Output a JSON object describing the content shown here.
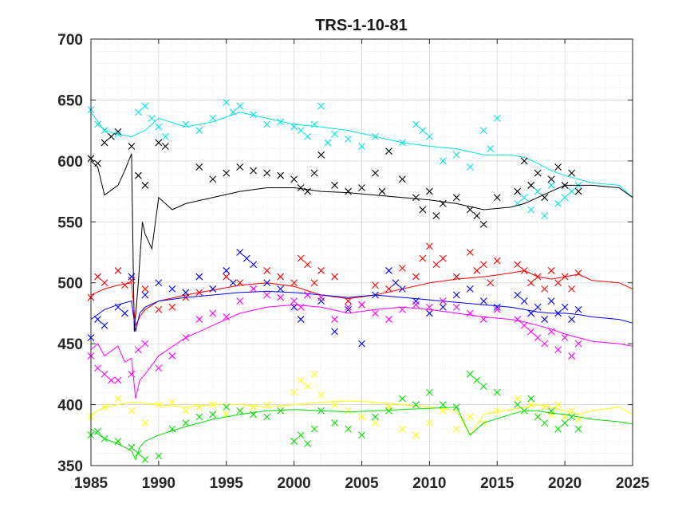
{
  "chart_data": {
    "type": "scatter",
    "title": "TRS-1-10-81",
    "xlabel": "",
    "ylabel": "",
    "xlim": [
      1985,
      2025
    ],
    "ylim": [
      350,
      700
    ],
    "xticks": [
      1985,
      1990,
      1995,
      2000,
      2005,
      2010,
      2015,
      2020,
      2025
    ],
    "yticks": [
      350,
      400,
      450,
      500,
      550,
      600,
      650,
      700
    ],
    "grid": true,
    "minor_grid": true,
    "series": [
      {
        "name": "cyan",
        "color": "#00e5e5",
        "line_x": [
          1985,
          1986,
          1987,
          1988,
          1989,
          1990,
          1992,
          1994,
          1996,
          1998,
          2000,
          2002,
          2004,
          2006,
          2008,
          2010,
          2012,
          2014,
          2016,
          2017,
          2018,
          2019,
          2020,
          2021,
          2022,
          2024,
          2025
        ],
        "line_y": [
          640,
          625,
          622,
          620,
          625,
          635,
          628,
          632,
          640,
          635,
          630,
          628,
          625,
          620,
          615,
          612,
          610,
          605,
          605,
          603,
          598,
          592,
          588,
          585,
          582,
          580,
          570
        ],
        "points_x": [
          1985,
          1985.5,
          1986,
          1987,
          1988.5,
          1989,
          1989.5,
          1990,
          1990.5,
          1992,
          1993,
          1994,
          1995,
          1995.5,
          1996,
          1997,
          1998,
          1999,
          2000,
          2000.5,
          2001,
          2001.5,
          2002,
          2002.5,
          2003,
          2004,
          2005,
          2006,
          2007,
          2008,
          2009,
          2009.5,
          2010,
          2011,
          2012,
          2013,
          2014,
          2014.5,
          2015,
          2016.5,
          2017,
          2017.5,
          2018,
          2018.5,
          2019,
          2019.5,
          2020,
          2020.5,
          2021
        ],
        "points_y": [
          642,
          630,
          625,
          622,
          640,
          645,
          635,
          628,
          620,
          630,
          625,
          635,
          648,
          640,
          645,
          638,
          630,
          632,
          628,
          625,
          620,
          630,
          645,
          615,
          622,
          618,
          612,
          620,
          608,
          615,
          630,
          625,
          620,
          600,
          605,
          595,
          625,
          610,
          635,
          565,
          570,
          560,
          575,
          555,
          580,
          565,
          570,
          575,
          580
        ]
      },
      {
        "name": "black",
        "color": "#000000",
        "line_x": [
          1985,
          1985.5,
          1986,
          1987,
          1987.5,
          1988,
          1988.2,
          1988.5,
          1988.8,
          1989,
          1989.5,
          1990,
          1991,
          1992,
          1994,
          1996,
          1998,
          2000,
          2002,
          2004,
          2006,
          2008,
          2010,
          2012,
          2014,
          2016,
          2017,
          2018,
          2019,
          2020,
          2021,
          2022,
          2024,
          2025
        ],
        "line_y": [
          600,
          595,
          572,
          580,
          592,
          606,
          460,
          500,
          550,
          540,
          528,
          570,
          560,
          565,
          570,
          575,
          578,
          578,
          575,
          574,
          572,
          570,
          568,
          565,
          560,
          562,
          565,
          570,
          575,
          580,
          580,
          580,
          578,
          570
        ],
        "points_x": [
          1985,
          1985.5,
          1986,
          1986.5,
          1987,
          1988,
          1988.5,
          1989,
          1990,
          1990.5,
          1993,
          1994,
          1995,
          1996,
          1997,
          1998,
          1999,
          2000,
          2000.5,
          2001,
          2001.5,
          2002,
          2003,
          2004,
          2005,
          2006,
          2006.5,
          2007,
          2008,
          2009,
          2009.5,
          2010,
          2010.5,
          2011,
          2012,
          2013,
          2013.5,
          2014,
          2015,
          2016.5,
          2017,
          2017.5,
          2018,
          2018.5,
          2019,
          2019.5,
          2020,
          2020.5,
          2021
        ],
        "points_y": [
          602,
          598,
          615,
          620,
          624,
          612,
          588,
          580,
          615,
          612,
          595,
          585,
          590,
          595,
          592,
          590,
          588,
          585,
          578,
          575,
          590,
          605,
          580,
          575,
          578,
          590,
          575,
          608,
          585,
          570,
          560,
          575,
          555,
          565,
          570,
          560,
          555,
          548,
          570,
          575,
          600,
          580,
          590,
          570,
          585,
          595,
          580,
          590,
          575
        ]
      },
      {
        "name": "red",
        "color": "#ff0000",
        "line_x": [
          1985,
          1986,
          1987,
          1988,
          1988.3,
          1988.6,
          1989,
          1990,
          1992,
          1994,
          1996,
          1998,
          2000,
          2002,
          2004,
          2006,
          2008,
          2010,
          2012,
          2014,
          2016,
          2017,
          2018,
          2019,
          2020,
          2021,
          2022,
          2024,
          2025
        ],
        "line_y": [
          490,
          495,
          498,
          500,
          465,
          472,
          478,
          485,
          490,
          494,
          498,
          500,
          497,
          490,
          487,
          490,
          495,
          500,
          503,
          505,
          508,
          510,
          505,
          503,
          505,
          507,
          502,
          500,
          495
        ],
        "points_x": [
          1985,
          1985.5,
          1986,
          1987,
          1987.5,
          1988,
          1989,
          1990,
          1991,
          1992,
          1993,
          1994,
          1995,
          1996,
          1997,
          1998,
          1999,
          2000,
          2000.5,
          2001,
          2001.5,
          2002,
          2003,
          2004,
          2005,
          2006,
          2007,
          2008,
          2009,
          2009.5,
          2010,
          2010.5,
          2011,
          2012,
          2013,
          2013.5,
          2014,
          2014.5,
          2015,
          2016.5,
          2017,
          2017.5,
          2018,
          2018.5,
          2019,
          2019.5,
          2020,
          2020.5,
          2021
        ],
        "points_y": [
          488,
          505,
          500,
          510,
          498,
          502,
          495,
          478,
          480,
          488,
          492,
          495,
          505,
          500,
          495,
          510,
          505,
          500,
          520,
          515,
          500,
          510,
          505,
          485,
          482,
          498,
          495,
          512,
          505,
          520,
          530,
          515,
          520,
          505,
          525,
          510,
          515,
          500,
          518,
          515,
          510,
          500,
          505,
          495,
          510,
          500,
          505,
          495,
          508
        ]
      },
      {
        "name": "blue",
        "color": "#0000ff",
        "line_x": [
          1985,
          1986,
          1987,
          1988,
          1988.3,
          1988.6,
          1989,
          1990,
          1992,
          1994,
          1996,
          1998,
          2000,
          2002,
          2004,
          2006,
          2008,
          2010,
          2012,
          2014,
          2016,
          2017,
          2018,
          2019,
          2020,
          2021,
          2022,
          2024,
          2025
        ],
        "line_y": [
          470,
          478,
          482,
          485,
          460,
          475,
          480,
          485,
          488,
          490,
          492,
          493,
          492,
          490,
          488,
          490,
          488,
          486,
          484,
          482,
          480,
          478,
          476,
          475,
          475,
          474,
          472,
          470,
          467
        ],
        "points_x": [
          1985,
          1985.5,
          1986,
          1987,
          1987.5,
          1988,
          1989,
          1990,
          1991,
          1992,
          1993,
          1994,
          1995,
          1995.5,
          1996,
          1996.5,
          1997,
          1998,
          1999,
          2000,
          2000.5,
          2001,
          2002,
          2003,
          2004,
          2005,
          2006,
          2007,
          2007.5,
          2008,
          2009,
          2010,
          2011,
          2012,
          2013,
          2014,
          2015,
          2016.5,
          2017,
          2017.5,
          2018,
          2018.5,
          2019,
          2019.5,
          2020,
          2020.5,
          2021
        ],
        "points_y": [
          455,
          470,
          465,
          480,
          475,
          505,
          490,
          500,
          495,
          492,
          505,
          495,
          510,
          500,
          525,
          520,
          515,
          500,
          495,
          480,
          470,
          490,
          485,
          460,
          478,
          450,
          490,
          510,
          500,
          495,
          485,
          475,
          480,
          490,
          495,
          485,
          480,
          490,
          485,
          475,
          480,
          470,
          485,
          475,
          480,
          470,
          478
        ]
      },
      {
        "name": "magenta",
        "color": "#ff00ff",
        "line_x": [
          1985,
          1985.5,
          1986,
          1987,
          1987.5,
          1988,
          1988.3,
          1988.6,
          1989,
          1990,
          1992,
          1994,
          1996,
          1998,
          2000,
          2002,
          2004,
          2006,
          2008,
          2010,
          2012,
          2014,
          2016,
          2017,
          2018,
          2019,
          2020,
          2021,
          2022,
          2024,
          2025
        ],
        "line_y": [
          445,
          450,
          440,
          448,
          435,
          438,
          405,
          420,
          425,
          440,
          455,
          465,
          475,
          480,
          482,
          480,
          475,
          478,
          480,
          478,
          475,
          472,
          470,
          468,
          465,
          462,
          458,
          455,
          452,
          450,
          448
        ],
        "points_x": [
          1985,
          1985.5,
          1986,
          1986.5,
          1987,
          1988,
          1988.5,
          1989,
          1990,
          1991,
          1992,
          1993,
          1994,
          1995,
          1996,
          1997,
          1998,
          1999,
          2000,
          2000.5,
          2001,
          2002,
          2003,
          2004,
          2005,
          2006,
          2007,
          2008,
          2009,
          2010,
          2011,
          2012,
          2013,
          2014,
          2015,
          2016.5,
          2017,
          2017.5,
          2018,
          2018.5,
          2019,
          2019.5,
          2020,
          2020.5,
          2021
        ],
        "points_y": [
          440,
          430,
          425,
          420,
          420,
          425,
          445,
          450,
          430,
          440,
          455,
          470,
          475,
          472,
          485,
          495,
          490,
          488,
          485,
          480,
          490,
          488,
          470,
          480,
          482,
          475,
          470,
          478,
          482,
          480,
          485,
          480,
          475,
          470,
          478,
          470,
          465,
          460,
          455,
          450,
          460,
          445,
          455,
          440,
          450
        ]
      },
      {
        "name": "yellow",
        "color": "#ffff00",
        "line_x": [
          1985,
          1986,
          1987,
          1988,
          1990,
          1992,
          1994,
          1996,
          1998,
          2000,
          2002,
          2004,
          2006,
          2008,
          2010,
          2012,
          2013,
          2014,
          2016,
          2017,
          2018,
          2019,
          2020,
          2021,
          2022,
          2024,
          2025
        ],
        "line_y": [
          392,
          398,
          400,
          402,
          400,
          398,
          400,
          400,
          398,
          400,
          402,
          403,
          402,
          400,
          398,
          395,
          375,
          392,
          396,
          398,
          400,
          398,
          395,
          392,
          395,
          398,
          392
        ],
        "points_x": [
          1985,
          1986,
          1987,
          1988,
          1989,
          1990,
          1991,
          1992,
          1993,
          1994,
          1995,
          1996,
          1997,
          1998,
          1999,
          2000,
          2000.5,
          2001,
          2001.5,
          2002,
          2003,
          2004,
          2005,
          2006,
          2007,
          2008,
          2009,
          2010,
          2011,
          2012,
          2013,
          2014,
          2015,
          2016.5,
          2017,
          2017.5,
          2018,
          2018.5,
          2019,
          2019.5,
          2020,
          2020.5,
          2021
        ],
        "points_y": [
          390,
          398,
          405,
          395,
          385,
          400,
          402,
          395,
          398,
          400,
          392,
          395,
          398,
          400,
          395,
          410,
          420,
          415,
          425,
          408,
          400,
          395,
          390,
          385,
          398,
          380,
          375,
          385,
          395,
          380,
          390,
          385,
          395,
          405,
          395,
          400,
          390,
          398,
          392,
          400,
          390,
          395,
          388
        ]
      },
      {
        "name": "green",
        "color": "#00e000",
        "line_x": [
          1985,
          1986,
          1987,
          1988,
          1988.3,
          1988.6,
          1989,
          1990,
          1992,
          1994,
          1996,
          1998,
          2000,
          2002,
          2004,
          2006,
          2008,
          2010,
          2012,
          2013,
          2014,
          2016,
          2017,
          2018,
          2019,
          2020,
          2021,
          2022,
          2024,
          2025
        ],
        "line_y": [
          380,
          372,
          368,
          362,
          355,
          365,
          370,
          375,
          382,
          388,
          392,
          395,
          396,
          395,
          394,
          395,
          396,
          397,
          398,
          375,
          385,
          392,
          395,
          395,
          393,
          392,
          390,
          388,
          386,
          384
        ],
        "points_x": [
          1985,
          1985.5,
          1986,
          1987,
          1988,
          1988.5,
          1989,
          1990,
          1991,
          1992,
          1993,
          1994,
          1995,
          1996,
          1997,
          1998,
          1999,
          2000,
          2000.5,
          2001,
          2001.5,
          2002,
          2003,
          2004,
          2005,
          2006,
          2007,
          2008,
          2009,
          2010,
          2011,
          2012,
          2013,
          2013.5,
          2014,
          2015,
          2016.5,
          2017,
          2017.5,
          2018,
          2018.5,
          2019,
          2019.5,
          2020,
          2020.5,
          2021
        ],
        "points_y": [
          375,
          378,
          372,
          370,
          365,
          360,
          355,
          358,
          380,
          385,
          390,
          392,
          398,
          395,
          392,
          390,
          395,
          370,
          375,
          368,
          380,
          395,
          385,
          380,
          375,
          390,
          395,
          405,
          400,
          410,
          400,
          398,
          425,
          420,
          415,
          410,
          400,
          395,
          405,
          390,
          385,
          395,
          380,
          385,
          390,
          380
        ]
      }
    ]
  }
}
